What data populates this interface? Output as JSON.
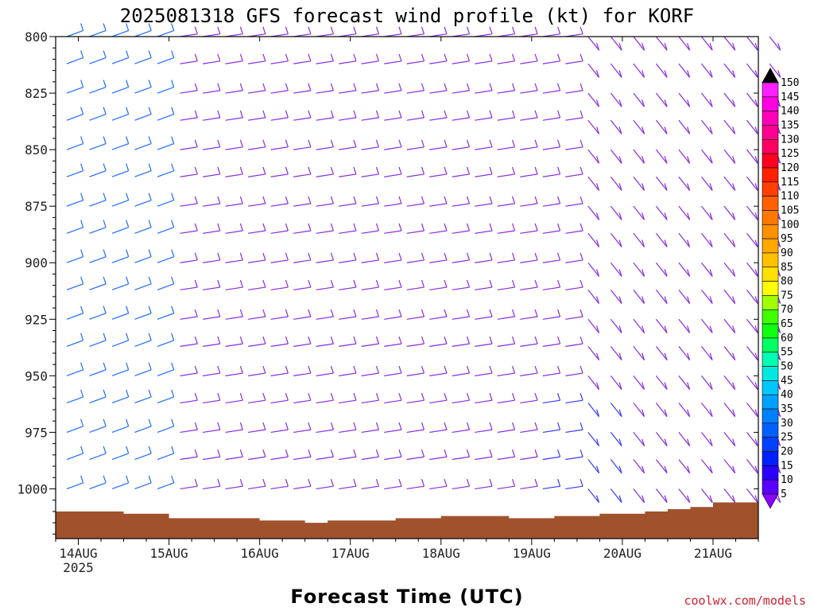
{
  "chart_data": {
    "type": "wind_barb_profile",
    "title": "2025081318 GFS forecast wind profile (kt) for KORF",
    "xlabel": "Forecast Time (UTC)",
    "ylabel": "",
    "credit": "coolwx.com/models",
    "y_ticks": [
      "800",
      "825",
      "850",
      "875",
      "900",
      "925",
      "950",
      "975",
      "1000"
    ],
    "y_values": [
      800,
      825,
      850,
      875,
      900,
      925,
      950,
      975,
      1000
    ],
    "ylim": [
      1022,
      800
    ],
    "x_ticks": [
      "14AUG",
      "15AUG",
      "16AUG",
      "17AUG",
      "18AUG",
      "19AUG",
      "20AUG",
      "21AUG"
    ],
    "x_tick_year": "2025",
    "xlim_hours": [
      0,
      186
    ],
    "levels_hpa": [
      800,
      812,
      825,
      837,
      850,
      862,
      875,
      887,
      900,
      912,
      925,
      937,
      950,
      962,
      975,
      987,
      1000,
      1012
    ],
    "times_hours": [
      0,
      6,
      12,
      18,
      24,
      30,
      36,
      42,
      48,
      54,
      60,
      66,
      72,
      78,
      84,
      90,
      96,
      102,
      108,
      114,
      120,
      126,
      132,
      138,
      144,
      150,
      156,
      162,
      168,
      174,
      180,
      186
    ],
    "surface_pressure_hpa": [
      1010,
      1010,
      1010,
      1011,
      1011,
      1013,
      1013,
      1013,
      1013,
      1014,
      1014,
      1015,
      1014,
      1014,
      1014,
      1013,
      1013,
      1012,
      1012,
      1012,
      1013,
      1013,
      1012,
      1012,
      1011,
      1011,
      1010,
      1009,
      1008,
      1006,
      1006,
      1007
    ],
    "wind_speed_colorbar": {
      "unit": "kt",
      "labels": [
        "5",
        "10",
        "15",
        "20",
        "25",
        "30",
        "35",
        "40",
        "45",
        "50",
        "55",
        "60",
        "65",
        "70",
        "75",
        "80",
        "85",
        "90",
        "95",
        "100",
        "105",
        "110",
        "115",
        "120",
        "125",
        "130",
        "135",
        "140",
        "145",
        "150"
      ],
      "colors": [
        "#8c00ff",
        "#5a00ff",
        "#2a00ff",
        "#0020ff",
        "#0040ff",
        "#0060ff",
        "#0080ff",
        "#00a0ff",
        "#00c8ff",
        "#00e8e0",
        "#00ffb0",
        "#00ff60",
        "#10ff10",
        "#40ff00",
        "#a0ff00",
        "#ffff00",
        "#ffe000",
        "#ffc000",
        "#ffa800",
        "#ff9000",
        "#ff7800",
        "#ff6000",
        "#ff4000",
        "#ff2000",
        "#ff0020",
        "#ff0060",
        "#ff0090",
        "#ff00b8",
        "#ff00e0",
        "#ff20ff"
      ]
    },
    "colors": {
      "terrain": "#a0522d",
      "frame": "#000000",
      "credit": "#d0202e"
    }
  }
}
